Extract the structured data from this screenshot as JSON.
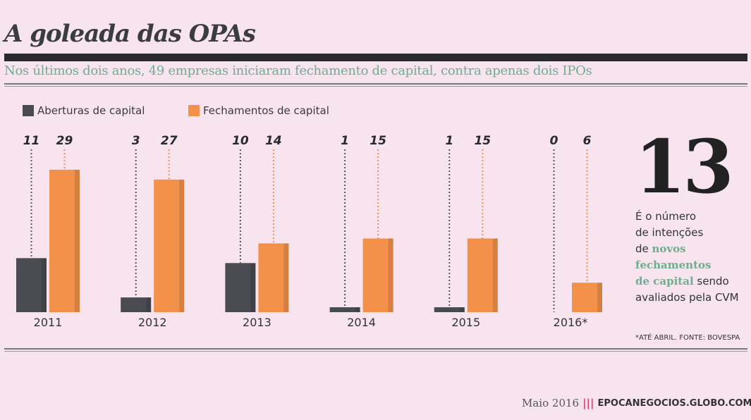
{
  "title": "A goleada das OPAs",
  "subtitle": "Nos últimos dois anos, 49 empresas iniciaram fechamento de capital, contra apenas dois IPOs",
  "colors": {
    "aberturas": "#4a4a52",
    "fechamentos": "#f3914a",
    "accent_green": "#6fae8d"
  },
  "chart_data": {
    "type": "bar",
    "categories": [
      "2011",
      "2012",
      "2013",
      "2014",
      "2015",
      "2016*"
    ],
    "series": [
      {
        "name": "Aberturas de capital",
        "values": [
          11,
          3,
          10,
          1,
          1,
          0
        ]
      },
      {
        "name": "Fechamentos de capital",
        "values": [
          29,
          27,
          14,
          15,
          15,
          6
        ]
      }
    ],
    "legend": "top-left",
    "grid": false,
    "ylim": [
      0,
      30
    ]
  },
  "highlight": {
    "number": "13",
    "line1": "É o número",
    "line2": "de intenções",
    "line3_prefix": "de ",
    "green1": "novos",
    "green2": "fechamentos",
    "green3": "de capital",
    "suffix": " sendo",
    "line_last": "avaliados pela CVM"
  },
  "source": "*ATÉ ABRIL. FONTE: BOVESPA",
  "footer": {
    "month": "Maio 2016",
    "separator": "|||",
    "url": "EPOCANEGOCIOS.GLOBO.COM"
  }
}
